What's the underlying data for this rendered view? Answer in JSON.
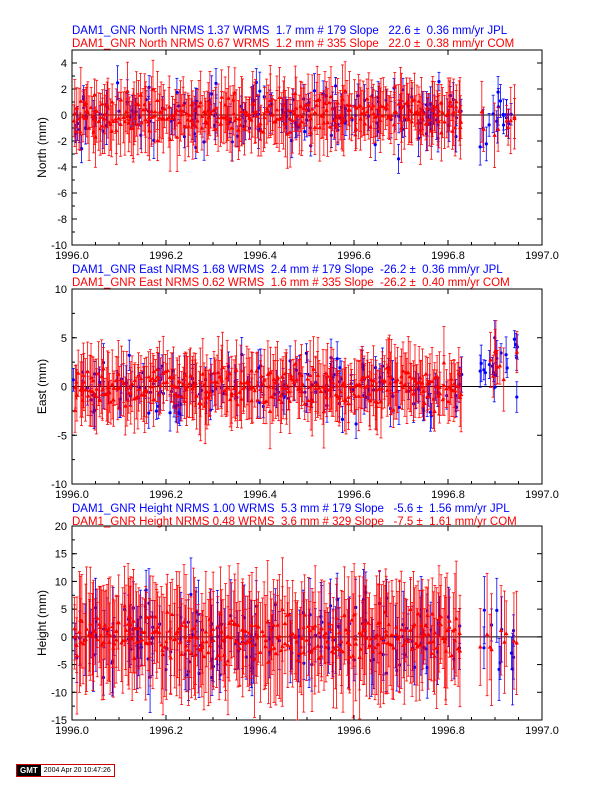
{
  "colors": {
    "blue": "#0000ff",
    "red": "#ff0000",
    "axis": "#000000"
  },
  "footer": {
    "logo": "GMT",
    "timestamp": "2004 Apr 20 10:47:26"
  },
  "chart_data": [
    {
      "type": "scatter",
      "ylabel": "North (mm)",
      "xlim": [
        1996.0,
        1997.0
      ],
      "ylim": [
        -10,
        5
      ],
      "xticks": [
        "1996.0",
        "1996.2",
        "1996.4",
        "1996.6",
        "1996.8",
        "1997.0"
      ],
      "xtick_values": [
        1996.0,
        1996.2,
        1996.4,
        1996.6,
        1996.8,
        1997.0
      ],
      "yticks": [
        4,
        2,
        0,
        -2,
        -4,
        -6,
        -8,
        -10
      ],
      "baseline": 0,
      "series": [
        {
          "name": "JPL",
          "color": "blue",
          "marker": "circle",
          "n": 179,
          "caption": "DAM1_GNR North NRMS 1.37 WRMS  1.7 mm # 179 Slope   22.6 ±  0.36 mm/yr JPL",
          "nrms": 1.37,
          "wrms": 1.7,
          "slope": 22.6,
          "slope_err": 0.36,
          "sigma": 1.7,
          "err": 1.0
        },
        {
          "name": "COM",
          "color": "red",
          "marker": "triangle",
          "n": 335,
          "caption": "DAM1_GNR North NRMS 0.67 WRMS  1.2 mm # 335 Slope   22.0 ±  0.38 mm/yr COM",
          "nrms": 0.67,
          "wrms": 1.2,
          "slope": 22.0,
          "slope_err": 0.38,
          "sigma": 1.2,
          "err": 1.8
        }
      ]
    },
    {
      "type": "scatter",
      "ylabel": "East (mm)",
      "xlim": [
        1996.0,
        1997.0
      ],
      "ylim": [
        -10,
        10
      ],
      "xticks": [
        "1996.0",
        "1996.2",
        "1996.4",
        "1996.6",
        "1996.8",
        "1997.0"
      ],
      "xtick_values": [
        1996.0,
        1996.2,
        1996.4,
        1996.6,
        1996.8,
        1997.0
      ],
      "yticks": [
        10,
        5,
        0,
        -5,
        -10
      ],
      "baseline": 0,
      "series": [
        {
          "name": "JPL",
          "color": "blue",
          "marker": "circle",
          "n": 179,
          "caption": "DAM1_GNR East NRMS 1.68 WRMS  2.4 mm # 179 Slope  -26.2 ±  0.36 mm/yr JPL",
          "nrms": 1.68,
          "wrms": 2.4,
          "slope": -26.2,
          "slope_err": 0.36,
          "sigma": 2.4,
          "err": 1.3
        },
        {
          "name": "COM",
          "color": "red",
          "marker": "triangle",
          "n": 335,
          "caption": "DAM1_GNR East NRMS 0.62 WRMS  1.6 mm # 335 Slope  -26.2 ±  0.40 mm/yr COM",
          "nrms": 0.62,
          "wrms": 1.6,
          "slope": -26.2,
          "slope_err": 0.4,
          "sigma": 1.6,
          "err": 2.6
        }
      ]
    },
    {
      "type": "scatter",
      "ylabel": "Height (mm)",
      "xlim": [
        1996.0,
        1997.0
      ],
      "ylim": [
        -15,
        20
      ],
      "xticks": [
        "1996.0",
        "1996.2",
        "1996.4",
        "1996.6",
        "1996.8",
        "1997.0"
      ],
      "xtick_values": [
        1996.0,
        1996.2,
        1996.4,
        1996.6,
        1996.8,
        1997.0
      ],
      "yticks": [
        20,
        15,
        10,
        5,
        0,
        -5,
        -10,
        -15
      ],
      "baseline": 0,
      "series": [
        {
          "name": "JPL",
          "color": "blue",
          "marker": "circle",
          "n": 179,
          "caption": "DAM1_GNR Height NRMS 1.00 WRMS  5.3 mm # 179 Slope   -5.6 ±  1.56 mm/yr JPL",
          "nrms": 1.0,
          "wrms": 5.3,
          "slope": -5.6,
          "slope_err": 1.56,
          "sigma": 5.3,
          "err": 4.5
        },
        {
          "name": "COM",
          "color": "red",
          "marker": "triangle",
          "n": 329,
          "caption": "DAM1_GNR Height NRMS 0.48 WRMS  3.6 mm # 329 Slope   -7.5 ±  1.61 mm/yr COM",
          "nrms": 0.48,
          "wrms": 3.6,
          "slope": -7.5,
          "slope_err": 1.61,
          "sigma": 3.6,
          "err": 7.5
        }
      ]
    }
  ]
}
